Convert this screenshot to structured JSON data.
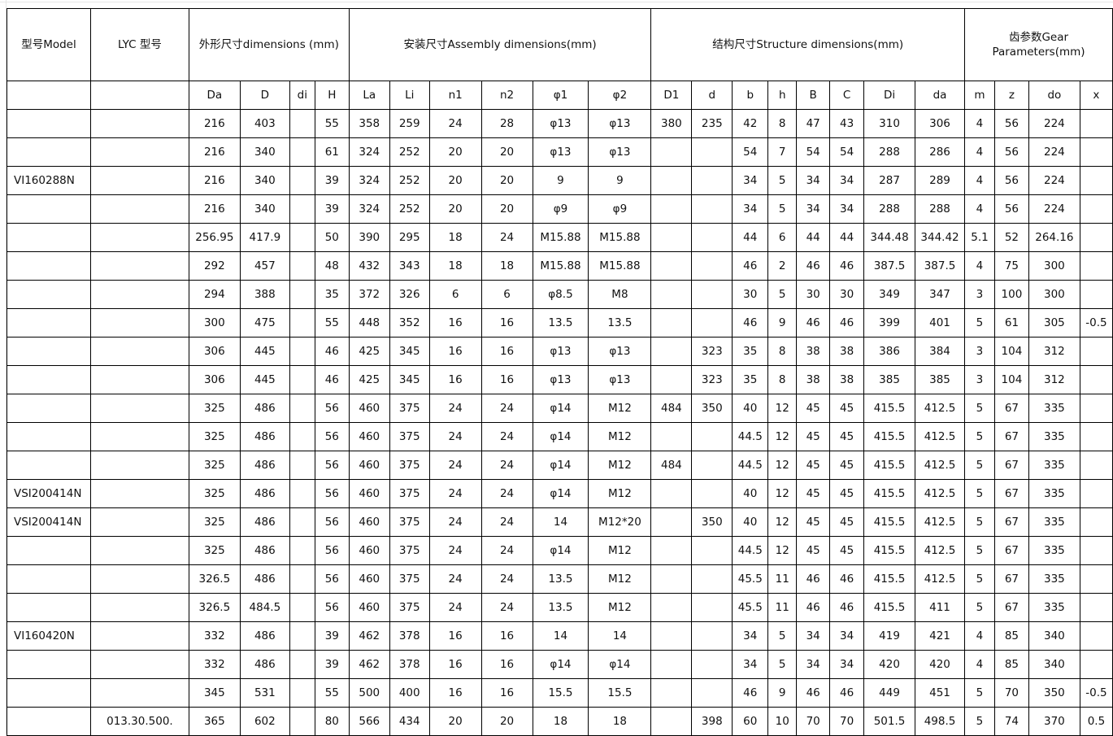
{
  "headers": {
    "model": "型号Model",
    "lyc": "LYC 型号",
    "dimensions": "外形尺寸dimensions (mm)",
    "assembly": "安装尺寸Assembly dimensions(mm)",
    "structure": "结构尺寸Structure dimensions(mm)",
    "gear_line1": "齿参数Gear",
    "gear_line2": "Parameters(mm)"
  },
  "columns": [
    "Da",
    "D",
    "di",
    "H",
    "La",
    "Li",
    "n1",
    "n2",
    "φ1",
    "φ2",
    "D1",
    "d",
    "b",
    "h",
    "B",
    "C",
    "Di",
    "da",
    "m",
    "z",
    "do",
    "x"
  ],
  "rows": [
    [
      "",
      "",
      "216",
      "403",
      "",
      "55",
      "358",
      "259",
      "24",
      "28",
      "φ13",
      "φ13",
      "380",
      "235",
      "42",
      "8",
      "47",
      "43",
      "310",
      "306",
      "4",
      "56",
      "224",
      ""
    ],
    [
      "",
      "",
      "216",
      "340",
      "",
      "61",
      "324",
      "252",
      "20",
      "20",
      "φ13",
      "φ13",
      "",
      "",
      "54",
      "7",
      "54",
      "54",
      "288",
      "286",
      "4",
      "56",
      "224",
      ""
    ],
    [
      "VI160288N",
      "",
      "216",
      "340",
      "",
      "39",
      "324",
      "252",
      "20",
      "20",
      "9",
      "9",
      "",
      "",
      "34",
      "5",
      "34",
      "34",
      "287",
      "289",
      "4",
      "56",
      "224",
      ""
    ],
    [
      "",
      "",
      "216",
      "340",
      "",
      "39",
      "324",
      "252",
      "20",
      "20",
      "φ9",
      "φ9",
      "",
      "",
      "34",
      "5",
      "34",
      "34",
      "288",
      "288",
      "4",
      "56",
      "224",
      ""
    ],
    [
      "",
      "",
      "256.95",
      "417.9",
      "",
      "50",
      "390",
      "295",
      "18",
      "24",
      "M15.88",
      "M15.88",
      "",
      "",
      "44",
      "6",
      "44",
      "44",
      "344.48",
      "344.42",
      "5.1",
      "52",
      "264.16",
      ""
    ],
    [
      "",
      "",
      "292",
      "457",
      "",
      "48",
      "432",
      "343",
      "18",
      "18",
      "M15.88",
      "M15.88",
      "",
      "",
      "46",
      "2",
      "46",
      "46",
      "387.5",
      "387.5",
      "4",
      "75",
      "300",
      ""
    ],
    [
      "",
      "",
      "294",
      "388",
      "",
      "35",
      "372",
      "326",
      "6",
      "6",
      "φ8.5",
      "M8",
      "",
      "",
      "30",
      "5",
      "30",
      "30",
      "349",
      "347",
      "3",
      "100",
      "300",
      ""
    ],
    [
      "",
      "",
      "300",
      "475",
      "",
      "55",
      "448",
      "352",
      "16",
      "16",
      "13.5",
      "13.5",
      "",
      "",
      "46",
      "9",
      "46",
      "46",
      "399",
      "401",
      "5",
      "61",
      "305",
      "-0.5"
    ],
    [
      "",
      "",
      "306",
      "445",
      "",
      "46",
      "425",
      "345",
      "16",
      "16",
      "φ13",
      "φ13",
      "",
      "323",
      "35",
      "8",
      "38",
      "38",
      "386",
      "384",
      "3",
      "104",
      "312",
      ""
    ],
    [
      "",
      "",
      "306",
      "445",
      "",
      "46",
      "425",
      "345",
      "16",
      "16",
      "φ13",
      "φ13",
      "",
      "323",
      "35",
      "8",
      "38",
      "38",
      "385",
      "385",
      "3",
      "104",
      "312",
      ""
    ],
    [
      "",
      "",
      "325",
      "486",
      "",
      "56",
      "460",
      "375",
      "24",
      "24",
      "φ14",
      "M12",
      "484",
      "350",
      "40",
      "12",
      "45",
      "45",
      "415.5",
      "412.5",
      "5",
      "67",
      "335",
      ""
    ],
    [
      "",
      "",
      "325",
      "486",
      "",
      "56",
      "460",
      "375",
      "24",
      "24",
      "φ14",
      "M12",
      "",
      "",
      "44.5",
      "12",
      "45",
      "45",
      "415.5",
      "412.5",
      "5",
      "67",
      "335",
      ""
    ],
    [
      "",
      "",
      "325",
      "486",
      "",
      "56",
      "460",
      "375",
      "24",
      "24",
      "φ14",
      "M12",
      "484",
      "",
      "44.5",
      "12",
      "45",
      "45",
      "415.5",
      "412.5",
      "5",
      "67",
      "335",
      ""
    ],
    [
      "VSI200414N",
      "",
      "325",
      "486",
      "",
      "56",
      "460",
      "375",
      "24",
      "24",
      "φ14",
      "M12",
      "",
      "",
      "40",
      "12",
      "45",
      "45",
      "415.5",
      "412.5",
      "5",
      "67",
      "335",
      ""
    ],
    [
      "VSI200414N",
      "",
      "325",
      "486",
      "",
      "56",
      "460",
      "375",
      "24",
      "24",
      "14",
      "M12*20",
      "",
      "350",
      "40",
      "12",
      "45",
      "45",
      "415.5",
      "412.5",
      "5",
      "67",
      "335",
      ""
    ],
    [
      "",
      "",
      "325",
      "486",
      "",
      "56",
      "460",
      "375",
      "24",
      "24",
      "φ14",
      "M12",
      "",
      "",
      "44.5",
      "12",
      "45",
      "45",
      "415.5",
      "412.5",
      "5",
      "67",
      "335",
      ""
    ],
    [
      "",
      "",
      "326.5",
      "486",
      "",
      "56",
      "460",
      "375",
      "24",
      "24",
      "13.5",
      "M12",
      "",
      "",
      "45.5",
      "11",
      "46",
      "46",
      "415.5",
      "412.5",
      "5",
      "67",
      "335",
      ""
    ],
    [
      "",
      "",
      "326.5",
      "484.5",
      "",
      "56",
      "460",
      "375",
      "24",
      "24",
      "13.5",
      "M12",
      "",
      "",
      "45.5",
      "11",
      "46",
      "46",
      "415.5",
      "411",
      "5",
      "67",
      "335",
      ""
    ],
    [
      "VI160420N",
      "",
      "332",
      "486",
      "",
      "39",
      "462",
      "378",
      "16",
      "16",
      "14",
      "14",
      "",
      "",
      "34",
      "5",
      "34",
      "34",
      "419",
      "421",
      "4",
      "85",
      "340",
      ""
    ],
    [
      "",
      "",
      "332",
      "486",
      "",
      "39",
      "462",
      "378",
      "16",
      "16",
      "φ14",
      "φ14",
      "",
      "",
      "34",
      "5",
      "34",
      "34",
      "420",
      "420",
      "4",
      "85",
      "340",
      ""
    ],
    [
      "",
      "",
      "345",
      "531",
      "",
      "55",
      "500",
      "400",
      "16",
      "16",
      "15.5",
      "15.5",
      "",
      "",
      "46",
      "9",
      "46",
      "46",
      "449",
      "451",
      "5",
      "70",
      "350",
      "-0.5"
    ],
    [
      "",
      "013.30.500.",
      "365",
      "602",
      "",
      "80",
      "566",
      "434",
      "20",
      "20",
      "18",
      "18",
      "",
      "398",
      "60",
      "10",
      "70",
      "70",
      "501.5",
      "498.5",
      "5",
      "74",
      "370",
      "0.5"
    ]
  ]
}
